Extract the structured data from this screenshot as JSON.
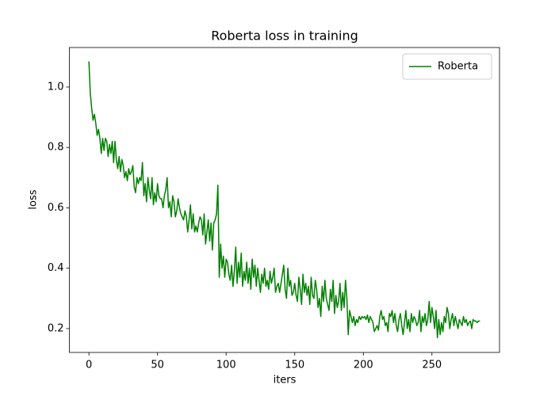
{
  "chart_data": {
    "type": "line",
    "title": "Roberta loss in training",
    "xlabel": "iters",
    "ylabel": "loss",
    "x": [
      0,
      1,
      2,
      3,
      4,
      5,
      6,
      7,
      8,
      9,
      10,
      11,
      12,
      13,
      14,
      15,
      16,
      17,
      18,
      19,
      20,
      21,
      22,
      23,
      24,
      25,
      26,
      27,
      28,
      29,
      30,
      31,
      32,
      33,
      34,
      35,
      36,
      37,
      38,
      39,
      40,
      41,
      42,
      43,
      44,
      45,
      46,
      47,
      48,
      49,
      50,
      51,
      52,
      53,
      54,
      55,
      56,
      57,
      58,
      59,
      60,
      61,
      62,
      63,
      64,
      65,
      66,
      67,
      68,
      69,
      70,
      71,
      72,
      73,
      74,
      75,
      76,
      77,
      78,
      79,
      80,
      81,
      82,
      83,
      84,
      85,
      86,
      87,
      88,
      89,
      90,
      91,
      92,
      93,
      94,
      95,
      96,
      97,
      98,
      99,
      100,
      101,
      102,
      103,
      104,
      105,
      106,
      107,
      108,
      109,
      110,
      111,
      112,
      113,
      114,
      115,
      116,
      117,
      118,
      119,
      120,
      121,
      122,
      123,
      124,
      125,
      126,
      127,
      128,
      129,
      130,
      131,
      132,
      133,
      134,
      135,
      136,
      137,
      138,
      139,
      140,
      141,
      142,
      143,
      144,
      145,
      146,
      147,
      148,
      149,
      150,
      151,
      152,
      153,
      154,
      155,
      156,
      157,
      158,
      159,
      160,
      161,
      162,
      163,
      164,
      165,
      166,
      167,
      168,
      169,
      170,
      171,
      172,
      173,
      174,
      175,
      176,
      177,
      178,
      179,
      180,
      181,
      182,
      183,
      184,
      185,
      186,
      187,
      188,
      189,
      190,
      191,
      192,
      193,
      194,
      195,
      196,
      197,
      198,
      199,
      200,
      201,
      202,
      203,
      204,
      205,
      206,
      207,
      208,
      209,
      210,
      211,
      212,
      213,
      214,
      215,
      216,
      217,
      218,
      219,
      220,
      221,
      222,
      223,
      224,
      225,
      226,
      227,
      228,
      229,
      230,
      231,
      232,
      233,
      234,
      235,
      236,
      237,
      238,
      239,
      240,
      241,
      242,
      243,
      244,
      245,
      246,
      247,
      248,
      249,
      250,
      251,
      252,
      253,
      254,
      255,
      256,
      257,
      258,
      259,
      260,
      261,
      262,
      263,
      264,
      265,
      266,
      267,
      268,
      269,
      270,
      271,
      272,
      273,
      274,
      275,
      276,
      277,
      278,
      279,
      280,
      281,
      282,
      283,
      284,
      285
    ],
    "series": [
      {
        "name": "Roberta",
        "color": "#008000",
        "values": [
          1.085,
          0.98,
          0.93,
          0.89,
          0.91,
          0.88,
          0.84,
          0.86,
          0.83,
          0.78,
          0.83,
          0.79,
          0.83,
          0.82,
          0.77,
          0.81,
          0.78,
          0.82,
          0.75,
          0.82,
          0.76,
          0.73,
          0.77,
          0.72,
          0.76,
          0.74,
          0.7,
          0.72,
          0.69,
          0.73,
          0.71,
          0.72,
          0.74,
          0.67,
          0.65,
          0.7,
          0.68,
          0.7,
          0.69,
          0.75,
          0.64,
          0.68,
          0.62,
          0.7,
          0.66,
          0.63,
          0.7,
          0.61,
          0.65,
          0.62,
          0.68,
          0.64,
          0.63,
          0.63,
          0.6,
          0.64,
          0.66,
          0.7,
          0.6,
          0.62,
          0.57,
          0.64,
          0.62,
          0.57,
          0.59,
          0.63,
          0.6,
          0.58,
          0.57,
          0.56,
          0.59,
          0.57,
          0.52,
          0.56,
          0.61,
          0.53,
          0.58,
          0.52,
          0.54,
          0.52,
          0.55,
          0.57,
          0.56,
          0.51,
          0.58,
          0.48,
          0.52,
          0.56,
          0.49,
          0.55,
          0.46,
          0.55,
          0.56,
          0.58,
          0.675,
          0.37,
          0.48,
          0.4,
          0.44,
          0.37,
          0.43,
          0.42,
          0.38,
          0.36,
          0.41,
          0.34,
          0.39,
          0.47,
          0.35,
          0.42,
          0.37,
          0.45,
          0.34,
          0.39,
          0.36,
          0.42,
          0.35,
          0.4,
          0.33,
          0.43,
          0.37,
          0.41,
          0.34,
          0.4,
          0.36,
          0.32,
          0.38,
          0.35,
          0.4,
          0.34,
          0.36,
          0.33,
          0.39,
          0.35,
          0.37,
          0.4,
          0.32,
          0.34,
          0.35,
          0.32,
          0.35,
          0.38,
          0.41,
          0.33,
          0.3,
          0.4,
          0.34,
          0.36,
          0.31,
          0.32,
          0.35,
          0.31,
          0.29,
          0.37,
          0.33,
          0.28,
          0.38,
          0.32,
          0.35,
          0.31,
          0.34,
          0.28,
          0.37,
          0.31,
          0.3,
          0.36,
          0.33,
          0.27,
          0.3,
          0.24,
          0.34,
          0.29,
          0.36,
          0.3,
          0.28,
          0.26,
          0.33,
          0.29,
          0.36,
          0.25,
          0.31,
          0.27,
          0.29,
          0.35,
          0.26,
          0.32,
          0.27,
          0.36,
          0.3,
          0.18,
          0.26,
          0.24,
          0.22,
          0.24,
          0.21,
          0.23,
          0.22,
          0.24,
          0.23,
          0.24,
          0.235,
          0.24,
          0.23,
          0.245,
          0.22,
          0.24,
          0.23,
          0.22,
          0.19,
          0.2,
          0.21,
          0.195,
          0.24,
          0.26,
          0.23,
          0.24,
          0.21,
          0.22,
          0.19,
          0.25,
          0.24,
          0.26,
          0.22,
          0.25,
          0.21,
          0.19,
          0.23,
          0.25,
          0.21,
          0.18,
          0.22,
          0.26,
          0.2,
          0.23,
          0.19,
          0.25,
          0.22,
          0.24,
          0.23,
          0.21,
          0.22,
          0.26,
          0.19,
          0.24,
          0.22,
          0.25,
          0.21,
          0.23,
          0.29,
          0.22,
          0.27,
          0.24,
          0.2,
          0.26,
          0.17,
          0.23,
          0.18,
          0.22,
          0.19,
          0.24,
          0.22,
          0.27,
          0.25,
          0.2,
          0.23,
          0.25,
          0.21,
          0.24,
          0.22,
          0.2,
          0.23,
          0.22,
          0.21,
          0.24,
          0.22,
          0.23,
          0.21,
          0.22,
          0.225,
          0.2,
          0.23,
          0.225,
          0.225,
          0.22,
          0.225,
          0.225
        ]
      }
    ],
    "xlim": [
      -14.25,
      299.25
    ],
    "xticks": [
      0,
      50,
      100,
      150,
      200,
      250
    ],
    "ylim": [
      0.121,
      1.131
    ],
    "yticks": [
      0.2,
      0.4,
      0.6,
      0.8,
      {
        "value": 1,
        "label": "1.0"
      }
    ],
    "legend": "upper right"
  }
}
